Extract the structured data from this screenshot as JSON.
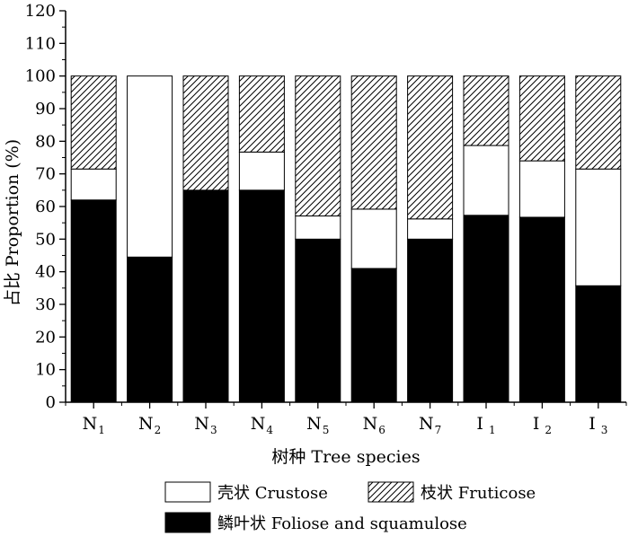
{
  "chart_data": {
    "type": "bar",
    "stacked": true,
    "categories": [
      {
        "base": "N",
        "sub": "1"
      },
      {
        "base": "N",
        "sub": "2"
      },
      {
        "base": "N",
        "sub": "3"
      },
      {
        "base": "N",
        "sub": "4"
      },
      {
        "base": "N",
        "sub": "5"
      },
      {
        "base": "N",
        "sub": "6"
      },
      {
        "base": "N",
        "sub": "7"
      },
      {
        "base": "I",
        "sub": "1"
      },
      {
        "base": "I",
        "sub": "2"
      },
      {
        "base": "I",
        "sub": "3"
      }
    ],
    "series": [
      {
        "name": "鳞叶状  Foliose and squamulose",
        "fill": "solid",
        "color": "#000000",
        "values": [
          62,
          44.5,
          65,
          65,
          50,
          41,
          50,
          57.3,
          56.7,
          35.7
        ]
      },
      {
        "name": "壳状  Crustose",
        "fill": "empty",
        "color": "#ffffff",
        "values": [
          9.5,
          55.5,
          0,
          11.7,
          7.1,
          18.2,
          6.2,
          21.4,
          17.3,
          35.8
        ]
      },
      {
        "name": "枝状  Fruticose",
        "fill": "hatch",
        "color": "#000000",
        "values": [
          28.5,
          0,
          35,
          23.3,
          42.9,
          40.8,
          43.8,
          21.3,
          26,
          28.5
        ]
      }
    ],
    "xlabel": "树种 Tree species",
    "ylabel": "占比 Proportion (%)",
    "ylim": [
      0,
      120
    ],
    "yticks": [
      0,
      10,
      20,
      30,
      40,
      50,
      60,
      70,
      80,
      90,
      100,
      110,
      120
    ],
    "grid": false,
    "legend": {
      "placement": "bottom",
      "entries": [
        "壳状  Crustose",
        "枝状  Fruticose",
        "鳞叶状  Foliose and squamulose"
      ]
    }
  }
}
